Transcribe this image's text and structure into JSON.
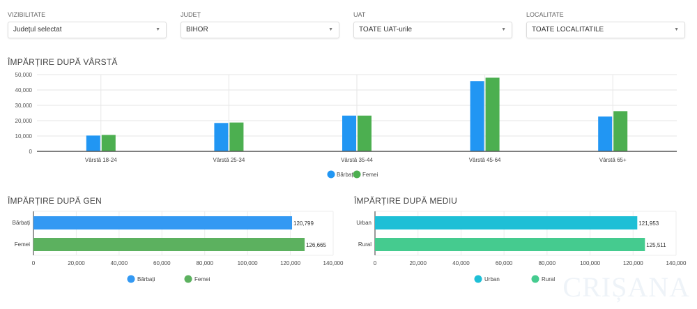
{
  "filters": [
    {
      "label": "VIZIBILITATE",
      "value": "Județul selectat"
    },
    {
      "label": "JUDEȚ",
      "value": "BIHOR"
    },
    {
      "label": "UAT",
      "value": "TOATE UAT-urile"
    },
    {
      "label": "LOCALITATE",
      "value": "TOATE LOCALITATILE"
    }
  ],
  "watermark": "CRIȘANA",
  "chart_data": [
    {
      "type": "bar",
      "title": "ÎMPĂRȚIRE DUPĂ VÂRSTĂ",
      "categories": [
        "Vârstă 18-24",
        "Vârstă 25-34",
        "Vârstă 35-44",
        "Vârstă 45-64",
        "Vârstă 65+"
      ],
      "series": [
        {
          "name": "Bărbați",
          "color": "#2196f3",
          "values": [
            10300,
            18500,
            23300,
            45800,
            22700
          ]
        },
        {
          "name": "Femei",
          "color": "#4caf50",
          "values": [
            10700,
            18800,
            23300,
            48000,
            26200
          ]
        }
      ],
      "ylim": [
        0,
        50000
      ],
      "yticks": [
        "0",
        "10,000",
        "20,000",
        "30,000",
        "40,000",
        "50,000"
      ],
      "grid": true,
      "legend": "bottom"
    },
    {
      "type": "bar",
      "orientation": "horizontal",
      "title": "ÎMPĂRȚIRE DUPĂ GEN",
      "categories": [
        "Bărbați",
        "Femei"
      ],
      "values": [
        120799,
        126665
      ],
      "labels": [
        "120,799",
        "126,665"
      ],
      "colors": [
        "#3399f3",
        "#5cb15f"
      ],
      "xlim": [
        0,
        140000
      ],
      "xticks": [
        "0",
        "20,000",
        "40,000",
        "60,000",
        "80,000",
        "100,000",
        "120,000",
        "140,000"
      ],
      "legend": "bottom"
    },
    {
      "type": "bar",
      "orientation": "horizontal",
      "title": "ÎMPĂRȚIRE DUPĂ MEDIU",
      "categories": [
        "Urban",
        "Rural"
      ],
      "values": [
        121953,
        125511
      ],
      "labels": [
        "121,953",
        "125,511"
      ],
      "colors": [
        "#1ebfd6",
        "#45cb8f"
      ],
      "xlim": [
        0,
        140000
      ],
      "xticks": [
        "0",
        "20,000",
        "40,000",
        "60,000",
        "80,000",
        "100,000",
        "120,000",
        "140,000"
      ],
      "legend": "bottom"
    }
  ]
}
